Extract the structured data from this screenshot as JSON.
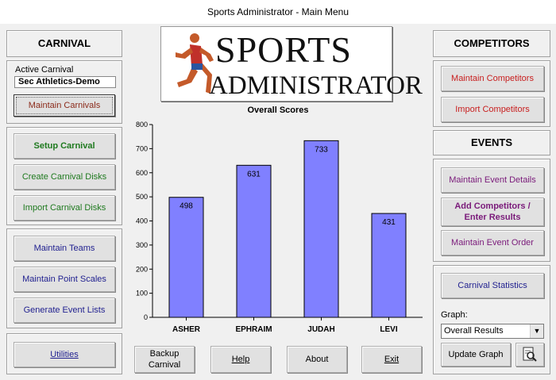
{
  "window": {
    "title": "Sports Administrator - Main Menu"
  },
  "carnival": {
    "heading": "CARNIVAL",
    "active_label": "Active Carnival",
    "active_value": "Sec Athletics-Demo",
    "maintain_carnivals": "Maintain Carnivals",
    "setup_carnival": "Setup Carnival",
    "create_disks": "Create Carnival Disks",
    "import_disks": "Import Carnival Disks",
    "maintain_teams": "Maintain Teams",
    "maintain_point_scales": "Maintain Point Scales",
    "generate_event_lists": "Generate Event Lists",
    "utilities": "Utilities"
  },
  "logo": {
    "line1": "SPORTS",
    "line2": "ADMINISTRATOR"
  },
  "competitors": {
    "heading": "COMPETITORS",
    "maintain": "Maintain Competitors",
    "import": "Import Competitors"
  },
  "events": {
    "heading": "EVENTS",
    "maintain_details": "Maintain Event Details",
    "add_competitors_l1": "Add Competitors /",
    "add_competitors_l2": "Enter Results",
    "maintain_order": "Maintain Event Order"
  },
  "stats": {
    "carnival_statistics": "Carnival Statistics",
    "graph_label": "Graph:",
    "graph_selected": "Overall Results",
    "update_graph": "Update Graph"
  },
  "bottom": {
    "backup_l1": "Backup",
    "backup_l2": "Carnival",
    "help": "Help",
    "about": "About",
    "exit": "Exit"
  },
  "colors": {
    "bar": "#8080ff",
    "bar_border": "#000000"
  },
  "chart_data": {
    "type": "bar",
    "title": "Overall Scores",
    "categories": [
      "ASHER",
      "EPHRAIM",
      "JUDAH",
      "LEVI"
    ],
    "values": [
      498,
      631,
      733,
      431
    ],
    "ylim": [
      0,
      800
    ],
    "yticks": [
      0,
      100,
      200,
      300,
      400,
      500,
      600,
      700,
      800
    ],
    "xlabel": "",
    "ylabel": "",
    "grid": false,
    "legend": "none"
  }
}
